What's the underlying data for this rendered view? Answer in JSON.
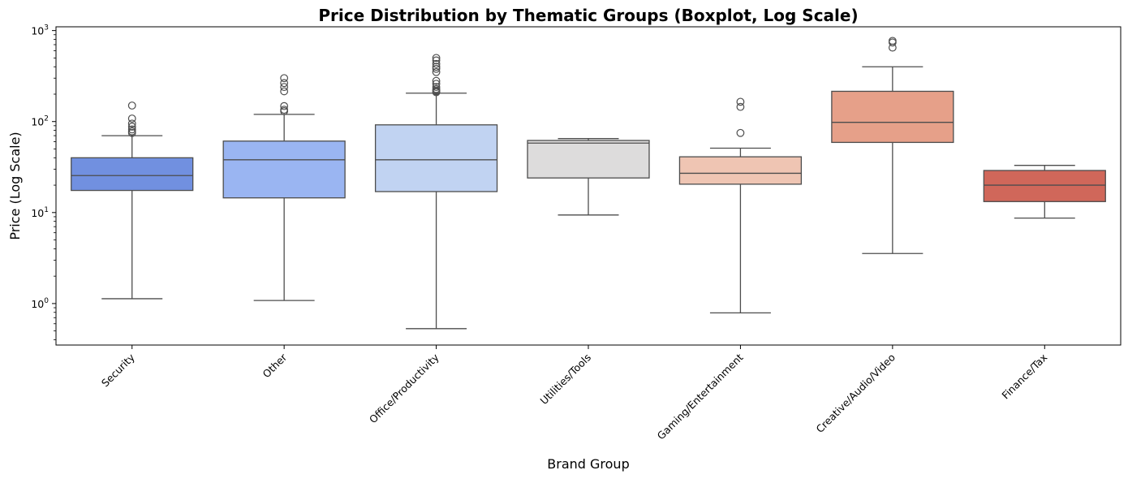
{
  "chart_data": {
    "type": "boxplot",
    "title": "Price Distribution by Thematic Groups (Boxplot, Log Scale)",
    "xlabel": "Brand Group",
    "ylabel": "Price (Log Scale)",
    "yscale": "log",
    "ylim": [
      0.35,
      1100
    ],
    "yticks": [
      {
        "value": 1,
        "base": "10",
        "exp": "0"
      },
      {
        "value": 10,
        "base": "10",
        "exp": "1"
      },
      {
        "value": 100,
        "base": "10",
        "exp": "2"
      },
      {
        "value": 1000,
        "base": "10",
        "exp": "3"
      }
    ],
    "grid": false,
    "groups": [
      {
        "name": "Security",
        "color": "#7190e0",
        "whislo": 1.13,
        "q1": 17.5,
        "med": 25.5,
        "q3": 40,
        "whishi": 70,
        "fliers": [
          75,
          78,
          82,
          88,
          95,
          108,
          150
        ]
      },
      {
        "name": "Other",
        "color": "#9ab5f2",
        "whislo": 1.08,
        "q1": 14.5,
        "med": 38,
        "q3": 61,
        "whishi": 120,
        "fliers": [
          130,
          135,
          148,
          215,
          240,
          265,
          300
        ]
      },
      {
        "name": "Office/Productivity",
        "color": "#c1d3f2",
        "whislo": 0.53,
        "q1": 17,
        "med": 38,
        "q3": 92,
        "whishi": 205,
        "fliers": [
          210,
          215,
          220,
          228,
          240,
          260,
          280,
          350,
          380,
          400,
          430,
          470,
          500
        ]
      },
      {
        "name": "Utilities/Tools",
        "color": "#dddcdc",
        "whislo": 9.4,
        "q1": 24,
        "med": 58,
        "q3": 62,
        "whishi": 65,
        "fliers": []
      },
      {
        "name": "Gaming/Entertainment",
        "color": "#efc5b3",
        "whislo": 0.79,
        "q1": 20.5,
        "med": 27,
        "q3": 41,
        "whishi": 51,
        "fliers": [
          75,
          145,
          165
        ]
      },
      {
        "name": "Creative/Audio/Video",
        "color": "#e6a089",
        "whislo": 3.55,
        "q1": 59,
        "med": 98,
        "q3": 215,
        "whishi": 400,
        "fliers": [
          650,
          740,
          770
        ]
      },
      {
        "name": "Finance/Tax",
        "color": "#d0675a",
        "whislo": 8.7,
        "q1": 13.2,
        "med": 20,
        "q3": 29,
        "whishi": 33,
        "fliers": []
      }
    ]
  }
}
